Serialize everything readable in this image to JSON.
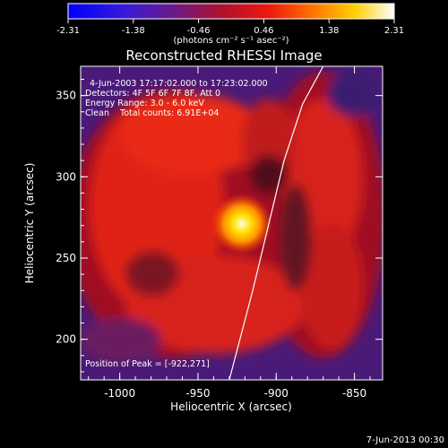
{
  "colorbar": {
    "ticks": [
      "-2.31",
      "-1.38",
      "-0.46",
      "0.46",
      "1.38",
      "2.31"
    ],
    "unit_label": "(photons cm⁻² s⁻¹ asec⁻²)",
    "colormap": "rainbow-like: blue-purple-red-orange-yellow-white"
  },
  "chart_data": {
    "type": "heatmap",
    "title": "Reconstructed RHESSI Image",
    "xlabel": "Heliocentric X (arcsec)",
    "ylabel": "Heliocentric Y (arcsec)",
    "xlim": [
      -1025,
      -832
    ],
    "ylim": [
      175,
      368
    ],
    "xticks": [
      "-1000",
      "-950",
      "-900",
      "-850"
    ],
    "yticks": [
      "200",
      "250",
      "300",
      "350"
    ],
    "annotations": {
      "time": "4-Jun-2003 17:17:02.000 to 17:23:02.000",
      "detectors": "Detectors: 4F 5F 6F 7F 8F, Att 0",
      "energy": "Energy Range: 3.0 - 6.0 keV",
      "clean": "Clean    Total counts: 6.91E+04",
      "peak": "Position of Peak = [-922,271]"
    },
    "peak": {
      "x": -922,
      "y": 271
    },
    "limb_curve": [
      [
        -930,
        175
      ],
      [
        -915,
        230
      ],
      [
        -905,
        270
      ],
      [
        -895,
        310
      ],
      [
        -883,
        345
      ],
      [
        -870,
        368
      ]
    ]
  },
  "footer": {
    "date": "7-Jun-2013 00:30"
  }
}
